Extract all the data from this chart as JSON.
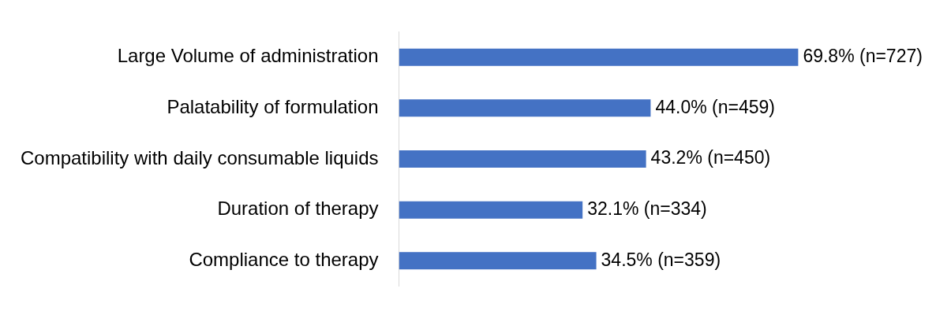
{
  "chart_data": {
    "type": "bar",
    "orientation": "horizontal",
    "categories": [
      "Large Volume of administration",
      "Palatability of formulation",
      "Compatibility with daily consumable liquids",
      "Duration of therapy",
      "Compliance to therapy"
    ],
    "values": [
      69.8,
      44.0,
      43.2,
      32.1,
      34.5
    ],
    "value_labels": [
      "69.8% (n=727)",
      "44.0% (n=459)",
      "43.2% (n=450)",
      "32.1% (n=334)",
      "34.5% (n=359)"
    ],
    "color": "#4472c4",
    "legend": false,
    "tick_labels": "y"
  }
}
